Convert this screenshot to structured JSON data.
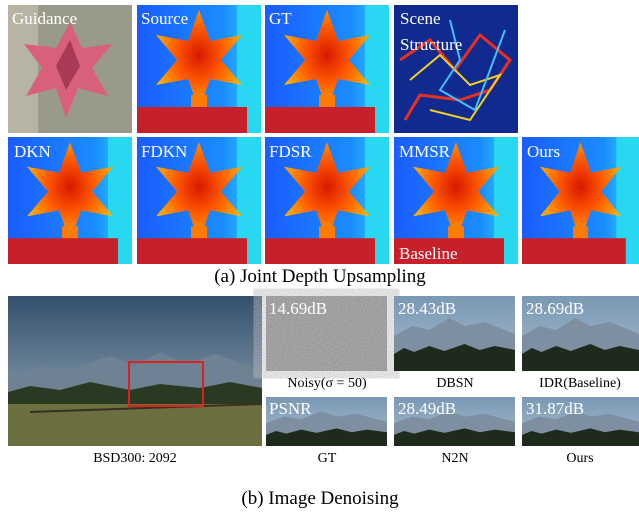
{
  "top": {
    "row1": [
      "Guidance",
      "Source",
      "GT",
      "Scene",
      "Structure"
    ],
    "row2": [
      "DKN",
      "FDKN",
      "FDSR",
      "MMSR",
      "Ours",
      "Baseline"
    ],
    "caption": "(a) Joint Depth Upsampling"
  },
  "bottom": {
    "scores_row1": [
      "14.69dB",
      "28.43dB",
      "28.69dB"
    ],
    "labels_row1": [
      "Noisy(σ = 50)",
      "DBSN",
      "IDR(Baseline)"
    ],
    "scores_row2": [
      "PSNR",
      "28.49dB",
      "31.87dB"
    ],
    "labels_row2": [
      "GT",
      "N2N",
      "Ours"
    ],
    "image_label": "BSD300: 2092",
    "caption": "(b) Image Denoising"
  }
}
